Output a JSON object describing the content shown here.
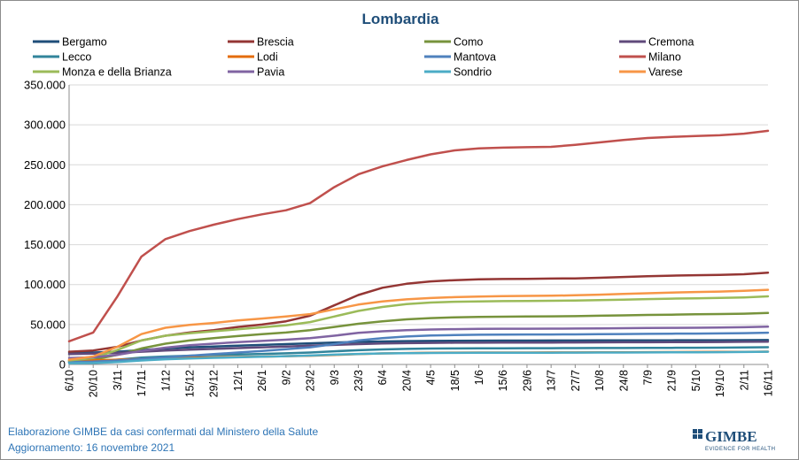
{
  "chart_data": {
    "type": "line",
    "title": "Lombardia",
    "xlabel": "",
    "ylabel": "",
    "ylim": [
      0,
      350000
    ],
    "yticks": [
      0,
      50000,
      100000,
      150000,
      200000,
      250000,
      300000,
      350000
    ],
    "ytick_labels": [
      "0",
      "50.000",
      "100.000",
      "150.000",
      "200.000",
      "250.000",
      "300.000",
      "350.000"
    ],
    "grid": true,
    "legend_position": "top",
    "x": [
      "6/10",
      "20/10",
      "3/11",
      "17/11",
      "1/12",
      "15/12",
      "29/12",
      "12/1",
      "26/1",
      "9/2",
      "23/2",
      "9/3",
      "23/3",
      "6/4",
      "20/4",
      "4/5",
      "18/5",
      "1/6",
      "15/6",
      "29/6",
      "13/7",
      "27/7",
      "10/8",
      "24/8",
      "7/9",
      "21/9",
      "5/10",
      "19/10",
      "2/11",
      "16/11"
    ],
    "series": [
      {
        "name": "Bergamo",
        "color": "#1f4e79",
        "values": [
          14500,
          15000,
          16000,
          18000,
          20000,
          21500,
          22500,
          23500,
          24500,
          25500,
          26500,
          27500,
          28200,
          28800,
          29200,
          29500,
          29700,
          29800,
          29900,
          29950,
          30000,
          30050,
          30100,
          30150,
          30200,
          30250,
          30300,
          30350,
          30450,
          30600
        ]
      },
      {
        "name": "Brescia",
        "color": "#943634",
        "values": [
          16000,
          17500,
          22000,
          30000,
          36000,
          40000,
          43000,
          47000,
          50000,
          54000,
          61000,
          74000,
          87000,
          96000,
          101000,
          104000,
          105500,
          106500,
          107000,
          107200,
          107500,
          107800,
          108500,
          109500,
          110500,
          111200,
          111800,
          112200,
          113000,
          115000
        ]
      },
      {
        "name": "Como",
        "color": "#77933c",
        "values": [
          4000,
          6000,
          12000,
          20000,
          26000,
          30000,
          33000,
          35500,
          38000,
          40000,
          43000,
          47000,
          51000,
          54000,
          56500,
          58000,
          59000,
          59500,
          59800,
          60000,
          60200,
          60500,
          61000,
          61500,
          62000,
          62400,
          62800,
          63100,
          63600,
          64500
        ]
      },
      {
        "name": "Cremona",
        "color": "#604a7b",
        "values": [
          13000,
          13500,
          14500,
          16000,
          17500,
          18500,
          19500,
          20500,
          21500,
          22500,
          23500,
          24500,
          25500,
          26200,
          26700,
          27000,
          27200,
          27300,
          27400,
          27450,
          27500,
          27550,
          27650,
          27750,
          27850,
          27950,
          28050,
          28150,
          28300,
          28600
        ]
      },
      {
        "name": "Lecco",
        "color": "#31849b",
        "values": [
          3000,
          4000,
          6000,
          8500,
          10000,
          11000,
          11800,
          12500,
          13200,
          14000,
          15000,
          16500,
          17800,
          18800,
          19500,
          19900,
          20100,
          20200,
          20300,
          20350,
          20400,
          20450,
          20550,
          20650,
          20750,
          20850,
          20950,
          21050,
          21250,
          21600
        ]
      },
      {
        "name": "Lodi",
        "color": "#e46c0a",
        "values": [
          5000,
          5300,
          6000,
          7000,
          7800,
          8400,
          8900,
          9400,
          9900,
          10400,
          11000,
          12000,
          13000,
          13800,
          14300,
          14600,
          14800,
          14900,
          14950,
          15000,
          15050,
          15100,
          15200,
          15300,
          15400,
          15500,
          15600,
          15700,
          15850,
          16100
        ]
      },
      {
        "name": "Mantova",
        "color": "#4f81bd",
        "values": [
          3000,
          3500,
          5000,
          7000,
          9000,
          11000,
          13000,
          15000,
          17000,
          19000,
          21500,
          25500,
          30000,
          33000,
          35000,
          36200,
          36800,
          37200,
          37400,
          37500,
          37600,
          37700,
          37900,
          38100,
          38300,
          38500,
          38700,
          38900,
          39200,
          39800
        ]
      },
      {
        "name": "Milano",
        "color": "#c0504d",
        "values": [
          29000,
          40000,
          85000,
          135000,
          157000,
          167000,
          175000,
          182000,
          188000,
          193000,
          202000,
          222000,
          238000,
          248000,
          256000,
          263000,
          268000,
          270500,
          271500,
          272000,
          272500,
          275000,
          278000,
          281000,
          283500,
          285000,
          286000,
          287000,
          289000,
          292500
        ]
      },
      {
        "name": "Monza e della Brianza",
        "color": "#9bbb59",
        "values": [
          5000,
          8000,
          18000,
          30000,
          36000,
          39000,
          41500,
          44000,
          46500,
          49000,
          53000,
          60000,
          67000,
          72000,
          75500,
          77500,
          78500,
          79000,
          79300,
          79500,
          79700,
          80000,
          80500,
          81200,
          81800,
          82400,
          82900,
          83300,
          84000,
          85300
        ]
      },
      {
        "name": "Pavia",
        "color": "#8064a2",
        "values": [
          8000,
          9000,
          12000,
          17000,
          21000,
          24000,
          26000,
          28000,
          29500,
          31000,
          33000,
          36000,
          39500,
          41500,
          43000,
          43800,
          44200,
          44500,
          44700,
          44800,
          44900,
          45000,
          45200,
          45400,
          45600,
          45800,
          46000,
          46200,
          46600,
          47300
        ]
      },
      {
        "name": "Sondrio",
        "color": "#4bacc6",
        "values": [
          1500,
          1800,
          3000,
          5000,
          6500,
          7500,
          8300,
          9000,
          9700,
          10400,
          11200,
          12300,
          13200,
          13800,
          14200,
          14400,
          14500,
          14600,
          14650,
          14700,
          14750,
          14800,
          14900,
          15000,
          15100,
          15200,
          15300,
          15400,
          15600,
          15900
        ]
      },
      {
        "name": "Varese",
        "color": "#f79646",
        "values": [
          6000,
          10000,
          22000,
          38000,
          46000,
          49500,
          52000,
          55000,
          57500,
          60000,
          63000,
          69000,
          75000,
          79000,
          81500,
          83200,
          84300,
          85000,
          85500,
          85800,
          86100,
          86600,
          87400,
          88300,
          89200,
          90000,
          90700,
          91300,
          92200,
          93500
        ]
      }
    ]
  },
  "footer": {
    "line1": "Elaborazione GIMBE da casi confermati dal Ministero della Salute",
    "line2": "Aggiornamento: 16 novembre 2021"
  },
  "logo": {
    "name": "GIMBE",
    "tagline": "EVIDENCE FOR HEALTH",
    "color": "#1f4e79"
  }
}
